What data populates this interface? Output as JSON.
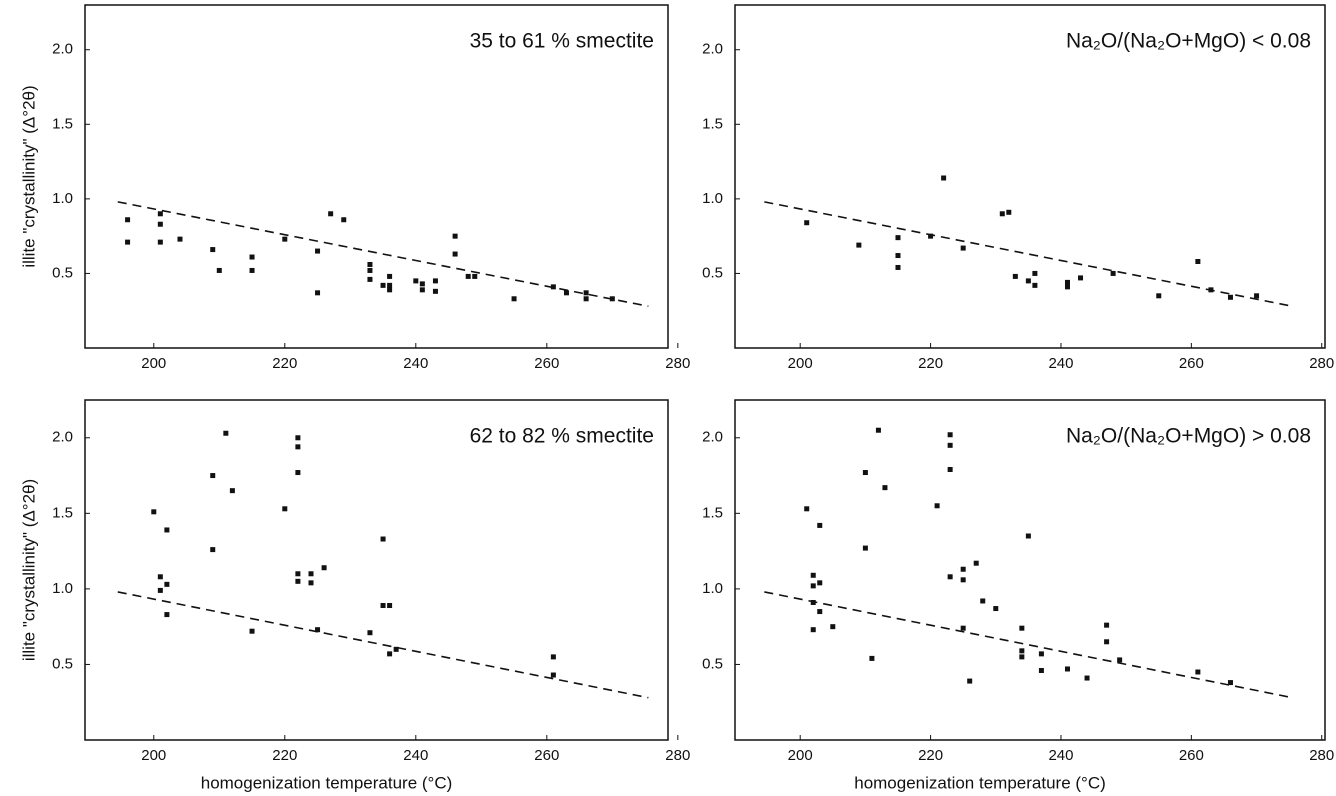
{
  "chart_data": [
    {
      "type": "scatter",
      "annotation": "35 to 61 % smectite",
      "ylabel": "illite \"crystallinity\" (Δ°2θ)",
      "x": [
        196,
        196,
        201,
        201,
        201,
        204,
        209,
        210,
        215,
        215,
        220,
        225,
        225,
        227,
        229,
        233,
        233,
        233,
        235,
        236,
        236,
        236,
        240,
        241,
        241,
        243,
        243,
        246,
        246,
        248,
        249,
        255,
        261,
        263,
        266,
        266,
        270
      ],
      "values": [
        0.86,
        0.71,
        0.9,
        0.83,
        0.71,
        0.73,
        0.66,
        0.52,
        0.61,
        0.52,
        0.73,
        0.65,
        0.37,
        0.9,
        0.86,
        0.56,
        0.52,
        0.46,
        0.42,
        0.48,
        0.42,
        0.39,
        0.45,
        0.43,
        0.39,
        0.45,
        0.38,
        0.75,
        0.63,
        0.48,
        0.48,
        0.33,
        0.41,
        0.37,
        0.37,
        0.33,
        0.33
      ],
      "trend": {
        "x": [
          194.5,
          275.5
        ],
        "values": [
          0.98,
          0.28
        ]
      },
      "xlim": [
        189.5,
        278.5
      ],
      "ylim": [
        0,
        2.3
      ],
      "xticks": [
        200,
        220,
        240,
        260,
        280
      ],
      "yticks": [
        0.5,
        {
          "value": 1,
          "label": "1.0"
        },
        1.5,
        {
          "value": 2,
          "label": "2.0"
        }
      ]
    },
    {
      "type": "scatter",
      "annotation": "Na₂O/(Na₂O+MgO) < 0.08",
      "x": [
        201,
        209,
        215,
        215,
        215,
        220,
        222,
        225,
        231,
        232,
        233,
        235,
        236,
        236,
        241,
        241,
        243,
        248,
        255,
        261,
        263,
        266,
        270
      ],
      "values": [
        0.84,
        0.69,
        0.74,
        0.62,
        0.54,
        0.75,
        1.14,
        0.67,
        0.9,
        0.91,
        0.48,
        0.45,
        0.5,
        0.42,
        0.44,
        0.41,
        0.47,
        0.5,
        0.35,
        0.58,
        0.39,
        0.34,
        0.35
      ],
      "trend": {
        "x": [
          194.5,
          275.5
        ],
        "values": [
          0.98,
          0.28
        ]
      },
      "xlim": [
        190,
        280.5
      ],
      "ylim": [
        0,
        2.3
      ],
      "xticks": [
        200,
        220,
        240,
        260,
        280
      ],
      "yticks": [
        0.5,
        {
          "value": 1,
          "label": "1.0"
        },
        1.5,
        {
          "value": 2,
          "label": "2.0"
        }
      ]
    },
    {
      "type": "scatter",
      "annotation": "62 to 82 % smectite",
      "ylabel": "illite \"crystallinity\" (Δ°2θ)",
      "xlabel": "homogenization temperature (°C)",
      "x": [
        200,
        201,
        201,
        202,
        202,
        202,
        209,
        209,
        211,
        212,
        215,
        220,
        222,
        222,
        222,
        222,
        222,
        224,
        224,
        225,
        226,
        233,
        235,
        235,
        236,
        236,
        237,
        261,
        261
      ],
      "values": [
        1.51,
        1.08,
        0.99,
        1.03,
        1.39,
        0.83,
        1.75,
        1.26,
        2.03,
        1.65,
        0.72,
        1.53,
        2.0,
        1.94,
        1.77,
        1.1,
        1.05,
        1.1,
        1.04,
        0.73,
        1.14,
        0.71,
        1.33,
        0.89,
        0.89,
        0.57,
        0.6,
        0.55,
        0.43
      ],
      "trend": {
        "x": [
          194.5,
          275.5
        ],
        "values": [
          0.98,
          0.28
        ]
      },
      "xlim": [
        189.5,
        278.5
      ],
      "ylim": [
        0,
        2.25
      ],
      "xticks": [
        200,
        220,
        240,
        260,
        280
      ],
      "yticks": [
        0.5,
        {
          "value": 1,
          "label": "1.0"
        },
        1.5,
        {
          "value": 2,
          "label": "2.0"
        }
      ]
    },
    {
      "type": "scatter",
      "annotation": "Na₂O/(Na₂O+MgO) > 0.08",
      "xlabel": "homogenization temperature (°C)",
      "x": [
        201,
        202,
        202,
        202,
        202,
        203,
        203,
        203,
        205,
        210,
        210,
        211,
        212,
        213,
        221,
        223,
        223,
        223,
        223,
        225,
        225,
        225,
        226,
        227,
        228,
        230,
        235,
        234,
        234,
        234,
        237,
        237,
        241,
        244,
        247,
        247,
        249,
        261,
        266
      ],
      "values": [
        1.53,
        1.09,
        1.02,
        0.91,
        0.73,
        1.42,
        1.04,
        0.85,
        0.75,
        1.77,
        1.27,
        0.54,
        2.05,
        1.67,
        1.55,
        2.02,
        1.95,
        1.79,
        1.08,
        1.13,
        1.06,
        0.74,
        0.39,
        1.17,
        0.92,
        0.87,
        1.35,
        0.74,
        0.59,
        0.55,
        0.57,
        0.46,
        0.47,
        0.41,
        0.76,
        0.65,
        0.53,
        0.45,
        0.38
      ],
      "trend": {
        "x": [
          194.5,
          275.5
        ],
        "values": [
          0.98,
          0.28
        ]
      },
      "xlim": [
        190,
        280.5
      ],
      "ylim": [
        0,
        2.25
      ],
      "xticks": [
        200,
        220,
        240,
        260,
        280
      ],
      "yticks": [
        0.5,
        {
          "value": 1,
          "label": "1.0"
        },
        1.5,
        {
          "value": 2,
          "label": "2.0"
        }
      ]
    }
  ]
}
